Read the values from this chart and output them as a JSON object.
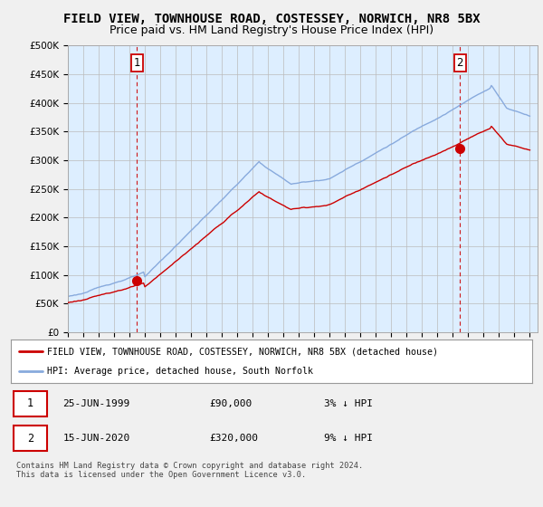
{
  "title": "FIELD VIEW, TOWNHOUSE ROAD, COSTESSEY, NORWICH, NR8 5BX",
  "subtitle": "Price paid vs. HM Land Registry's House Price Index (HPI)",
  "title_fontsize": 10,
  "subtitle_fontsize": 9,
  "ylim": [
    0,
    500000
  ],
  "yticks": [
    0,
    50000,
    100000,
    150000,
    200000,
    250000,
    300000,
    350000,
    400000,
    450000,
    500000
  ],
  "ytick_labels": [
    "£0",
    "£50K",
    "£100K",
    "£150K",
    "£200K",
    "£250K",
    "£300K",
    "£350K",
    "£400K",
    "£450K",
    "£500K"
  ],
  "hpi_color": "#88aadd",
  "property_color": "#cc0000",
  "dashed_color": "#cc0000",
  "sale1_date": 1999.48,
  "sale1_price": 90000,
  "sale2_date": 2020.46,
  "sale2_price": 320000,
  "legend_property": "FIELD VIEW, TOWNHOUSE ROAD, COSTESSEY, NORWICH, NR8 5BX (detached house)",
  "legend_hpi": "HPI: Average price, detached house, South Norfolk",
  "background_color": "#f0f0f0",
  "plot_bg_color": "#ddeeff",
  "grid_color": "#bbbbbb",
  "footnote": "Contains HM Land Registry data © Crown copyright and database right 2024.\nThis data is licensed under the Open Government Licence v3.0."
}
